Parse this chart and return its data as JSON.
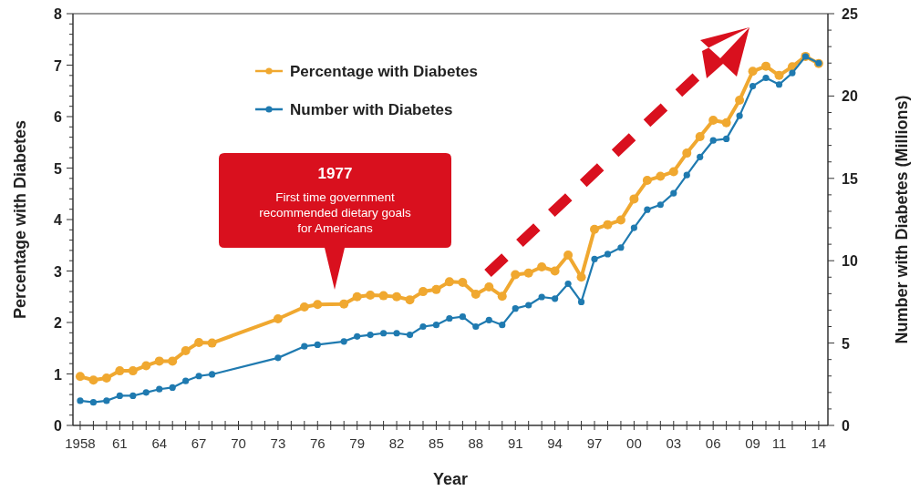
{
  "chart_data": {
    "type": "line",
    "xlabel": "Year",
    "ylabel": "Percentage with Diabetes",
    "y2label": "Number with Diabetes (Millions)",
    "x": [
      1958,
      1959,
      1960,
      1961,
      1962,
      1963,
      1964,
      1965,
      1966,
      1967,
      1968,
      1973,
      1975,
      1976,
      1978,
      1979,
      1980,
      1981,
      1982,
      1983,
      1984,
      1985,
      1986,
      1987,
      1988,
      1989,
      1990,
      1991,
      1992,
      1993,
      1994,
      1995,
      1996,
      1997,
      1998,
      1999,
      2000,
      2001,
      2002,
      2003,
      2004,
      2005,
      2006,
      2007,
      2008,
      2009,
      2010,
      2011,
      2012,
      2013,
      2014
    ],
    "series": [
      {
        "name": "Percentage with Diabetes",
        "color": "#f0a830",
        "marker": "circle",
        "values": [
          0.95,
          0.88,
          0.92,
          1.06,
          1.06,
          1.16,
          1.25,
          1.25,
          1.45,
          1.61,
          1.6,
          2.07,
          2.3,
          2.35,
          2.36,
          2.5,
          2.53,
          2.52,
          2.5,
          2.44,
          2.6,
          2.64,
          2.79,
          2.78,
          2.55,
          2.69,
          2.51,
          2.93,
          2.96,
          3.08,
          3.0,
          3.31,
          2.88,
          3.81,
          3.9,
          3.99,
          4.4,
          4.76,
          4.84,
          4.93,
          5.29,
          5.61,
          5.93,
          5.88,
          6.32,
          6.88,
          6.98,
          6.8,
          6.97,
          7.17,
          7.03
        ]
      },
      {
        "name": "Number with Diabetes",
        "color": "#1f7ab0",
        "marker": "circle",
        "axis": "y2",
        "values": [
          1.5,
          1.4,
          1.5,
          1.8,
          1.8,
          2.0,
          2.2,
          2.3,
          2.7,
          3.0,
          3.1,
          4.1,
          4.8,
          4.9,
          5.1,
          5.4,
          5.5,
          5.6,
          5.6,
          5.5,
          6.0,
          6.1,
          6.5,
          6.6,
          6.0,
          6.4,
          6.1,
          7.1,
          7.3,
          7.8,
          7.7,
          8.6,
          7.5,
          10.1,
          10.4,
          10.8,
          12.0,
          13.1,
          13.4,
          14.1,
          15.2,
          16.3,
          17.3,
          17.4,
          18.8,
          20.6,
          21.1,
          20.7,
          21.4,
          22.4,
          22.0
        ]
      }
    ],
    "xlim": [
      1957.45,
      2014.7
    ],
    "xticks": [
      {
        "value": 1958,
        "label": "1958"
      },
      {
        "value": 1959,
        "label": null
      },
      {
        "value": 1960,
        "label": null
      },
      {
        "value": 1961,
        "label": "61"
      },
      {
        "value": 1962,
        "label": null
      },
      {
        "value": 1963,
        "label": null
      },
      {
        "value": 1964,
        "label": "64"
      },
      {
        "value": 1965,
        "label": null
      },
      {
        "value": 1966,
        "label": null
      },
      {
        "value": 1967,
        "label": "67"
      },
      {
        "value": 1968,
        "label": null
      },
      {
        "value": 1969,
        "label": null
      },
      {
        "value": 1970,
        "label": "70"
      },
      {
        "value": 1971,
        "label": null
      },
      {
        "value": 1972,
        "label": null
      },
      {
        "value": 1973,
        "label": "73"
      },
      {
        "value": 1974,
        "label": null
      },
      {
        "value": 1975,
        "label": null
      },
      {
        "value": 1976,
        "label": "76"
      },
      {
        "value": 1977,
        "label": null
      },
      {
        "value": 1978,
        "label": null
      },
      {
        "value": 1979,
        "label": "79"
      },
      {
        "value": 1980,
        "label": null
      },
      {
        "value": 1981,
        "label": null
      },
      {
        "value": 1982,
        "label": "82"
      },
      {
        "value": 1983,
        "label": null
      },
      {
        "value": 1984,
        "label": null
      },
      {
        "value": 1985,
        "label": "85"
      },
      {
        "value": 1986,
        "label": null
      },
      {
        "value": 1987,
        "label": null
      },
      {
        "value": 1988,
        "label": "88"
      },
      {
        "value": 1989,
        "label": null
      },
      {
        "value": 1990,
        "label": null
      },
      {
        "value": 1991,
        "label": "91"
      },
      {
        "value": 1992,
        "label": null
      },
      {
        "value": 1993,
        "label": null
      },
      {
        "value": 1994,
        "label": "94"
      },
      {
        "value": 1995,
        "label": null
      },
      {
        "value": 1996,
        "label": null
      },
      {
        "value": 1997,
        "label": "97"
      },
      {
        "value": 1998,
        "label": null
      },
      {
        "value": 1999,
        "label": null
      },
      {
        "value": 2000,
        "label": "00"
      },
      {
        "value": 2001,
        "label": null
      },
      {
        "value": 2002,
        "label": null
      },
      {
        "value": 2003,
        "label": "03"
      },
      {
        "value": 2004,
        "label": null
      },
      {
        "value": 2005,
        "label": null
      },
      {
        "value": 2006,
        "label": "06"
      },
      {
        "value": 2007,
        "label": null
      },
      {
        "value": 2008,
        "label": null
      },
      {
        "value": 2009,
        "label": "09"
      },
      {
        "value": 2010,
        "label": null
      },
      {
        "value": 2011,
        "label": "11"
      },
      {
        "value": 2012,
        "label": null
      },
      {
        "value": 2013,
        "label": null
      },
      {
        "value": 2014,
        "label": "14"
      }
    ],
    "ylim": [
      0,
      8
    ],
    "yticks": [
      0,
      {
        "value": 0.2,
        "label": null
      },
      {
        "value": 0.4,
        "label": null
      },
      {
        "value": 0.6,
        "label": null
      },
      {
        "value": 0.8,
        "label": null
      },
      1,
      {
        "value": 1.2,
        "label": null
      },
      {
        "value": 1.4,
        "label": null
      },
      {
        "value": 1.6,
        "label": null
      },
      {
        "value": 1.8,
        "label": null
      },
      2,
      {
        "value": 2.2,
        "label": null
      },
      {
        "value": 2.4,
        "label": null
      },
      {
        "value": 2.6,
        "label": null
      },
      {
        "value": 2.8,
        "label": null
      },
      3,
      {
        "value": 3.2,
        "label": null
      },
      {
        "value": 3.4,
        "label": null
      },
      {
        "value": 3.6,
        "label": null
      },
      {
        "value": 3.8,
        "label": null
      },
      4,
      {
        "value": 4.2,
        "label": null
      },
      {
        "value": 4.4,
        "label": null
      },
      {
        "value": 4.6,
        "label": null
      },
      {
        "value": 4.8,
        "label": null
      },
      5,
      {
        "value": 5.2,
        "label": null
      },
      {
        "value": 5.4,
        "label": null
      },
      {
        "value": 5.6,
        "label": null
      },
      {
        "value": 5.8,
        "label": null
      },
      6,
      {
        "value": 6.2,
        "label": null
      },
      {
        "value": 6.4,
        "label": null
      },
      {
        "value": 6.6,
        "label": null
      },
      {
        "value": 6.8,
        "label": null
      },
      7,
      {
        "value": 7.2,
        "label": null
      },
      {
        "value": 7.4,
        "label": null
      },
      {
        "value": 7.6,
        "label": null
      },
      {
        "value": 7.8,
        "label": null
      },
      8
    ],
    "y2lim": [
      0,
      25
    ],
    "y2ticks": [
      0,
      {
        "value": 1,
        "label": null
      },
      {
        "value": 2,
        "label": null
      },
      {
        "value": 3,
        "label": null
      },
      {
        "value": 4,
        "label": null
      },
      5,
      {
        "value": 6,
        "label": null
      },
      {
        "value": 7,
        "label": null
      },
      {
        "value": 8,
        "label": null
      },
      {
        "value": 9,
        "label": null
      },
      10,
      {
        "value": 11,
        "label": null
      },
      {
        "value": 12,
        "label": null
      },
      {
        "value": 13,
        "label": null
      },
      {
        "value": 14,
        "label": null
      },
      15,
      {
        "value": 16,
        "label": null
      },
      {
        "value": 17,
        "label": null
      },
      {
        "value": 18,
        "label": null
      },
      {
        "value": 19,
        "label": null
      },
      20,
      {
        "value": 21,
        "label": null
      },
      {
        "value": 22,
        "label": null
      },
      {
        "value": 23,
        "label": null
      },
      {
        "value": 24,
        "label": null
      },
      25
    ],
    "grid": false,
    "legend": "top left",
    "annotations": [
      "1977\nFirst time government\nrecommended dietary goals\nfor Americans"
    ]
  }
}
